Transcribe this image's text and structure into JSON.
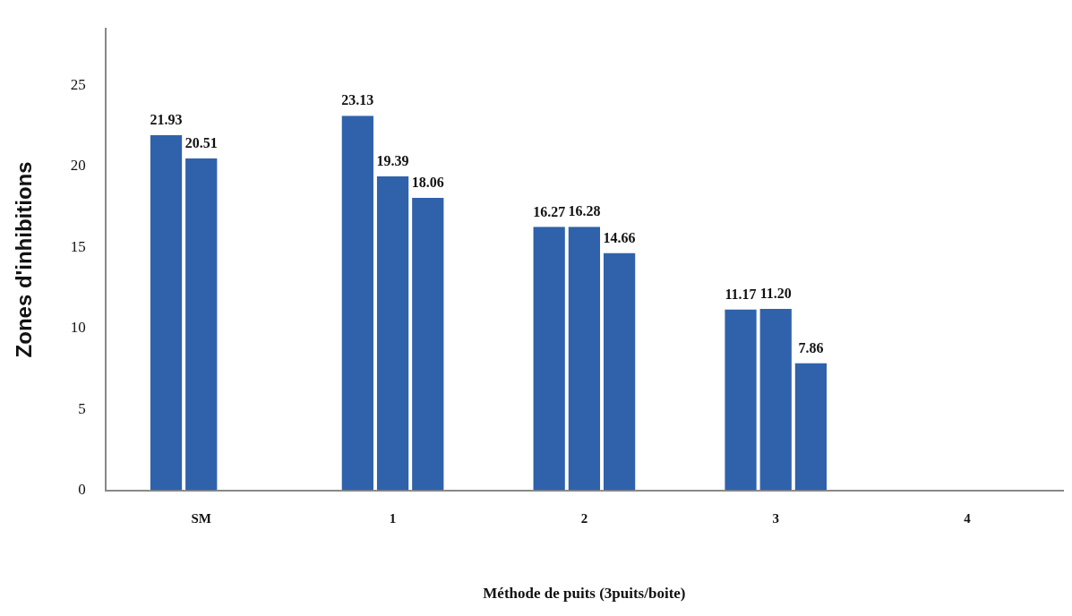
{
  "chart_data": {
    "type": "bar",
    "xlabel": "Méthode de puits (3puits/boite)",
    "ylabel": "Zones d'inhibitions",
    "categories": [
      "SM",
      "1",
      "2",
      "3",
      "4"
    ],
    "series": [
      {
        "color": "#2f62ab",
        "values": [
          21.93,
          23.13,
          16.27,
          11.17,
          null
        ],
        "value_labels": [
          "21.93",
          "23.13",
          "16.27",
          "11.17",
          null
        ]
      },
      {
        "color": "#2f62ab",
        "values": [
          20.51,
          19.39,
          16.28,
          11.2,
          null
        ],
        "value_labels": [
          "20.51",
          "19.39",
          "16.28",
          "11.20",
          null
        ]
      },
      {
        "color": "#2f62ab",
        "values": [
          null,
          18.06,
          14.66,
          7.86,
          null
        ],
        "value_labels": [
          null,
          "18.06",
          "14.66",
          "7.86",
          null
        ]
      }
    ],
    "ylim": [
      0,
      28.5
    ],
    "yticks": [
      0,
      5,
      10,
      15,
      20,
      25
    ],
    "grid": false,
    "legend": false
  }
}
